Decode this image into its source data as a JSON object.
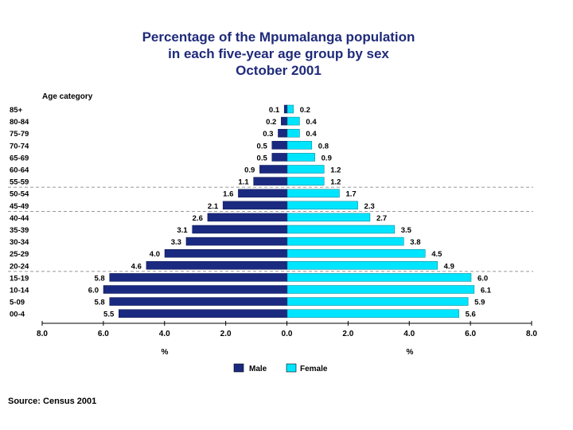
{
  "title": {
    "line1": "Percentage of the Mpumalanga population",
    "line2": "in each five-year age group by sex",
    "line3": "October 2001"
  },
  "source": "Source: Census 2001",
  "chart_data": {
    "type": "bar",
    "orientation": "horizontal-population-pyramid",
    "title": "Percentage of the Mpumalanga population in each five-year age group by sex October 2001",
    "ylabel": "Age category",
    "xlabel_left": "%",
    "xlabel_right": "%",
    "xlim": [
      0,
      8
    ],
    "xticks": [
      "8.0",
      "6.0",
      "4.0",
      "2.0",
      "0.0",
      "2.0",
      "4.0",
      "6.0",
      "8.0"
    ],
    "legend_position": "bottom",
    "categories": [
      "85+",
      "80-84",
      "75-79",
      "70-74",
      "65-69",
      "60-64",
      "55-59",
      "50-54",
      "45-49",
      "40-44",
      "35-39",
      "30-34",
      "25-29",
      "20-24",
      "15-19",
      "10-14",
      "5-09",
      "00-4"
    ],
    "series": [
      {
        "name": "Male",
        "color": "#1a2a80",
        "values": [
          0.1,
          0.2,
          0.3,
          0.5,
          0.5,
          0.9,
          1.1,
          1.6,
          2.1,
          2.6,
          3.1,
          3.3,
          4.0,
          4.6,
          5.8,
          6.0,
          5.8,
          5.5
        ],
        "labels": [
          "0.1",
          "0.2",
          "0.3",
          "0.5",
          "0.5",
          "0.9",
          "1.1",
          "1.6",
          "2.1",
          "2.6",
          "3.1",
          "3.3",
          "4.0",
          "4.6",
          "5.8",
          "6.0",
          "5.8",
          "5.5"
        ]
      },
      {
        "name": "Female",
        "color": "#00e5ff",
        "values": [
          0.2,
          0.4,
          0.4,
          0.8,
          0.9,
          1.2,
          1.2,
          1.7,
          2.3,
          2.7,
          3.5,
          3.8,
          4.5,
          4.9,
          6.0,
          6.1,
          5.9,
          5.6
        ],
        "labels": [
          "0.2",
          "0.4",
          "0.4",
          "0.8",
          "0.9",
          "1.2",
          "1.2",
          "1.7",
          "2.3",
          "2.7",
          "3.5",
          "3.8",
          "4.5",
          "4.9",
          "6.0",
          "6.1",
          "5.9",
          "5.6"
        ]
      }
    ],
    "reference_lines_after": [
      "55-59",
      "45-49",
      "20-24"
    ]
  }
}
